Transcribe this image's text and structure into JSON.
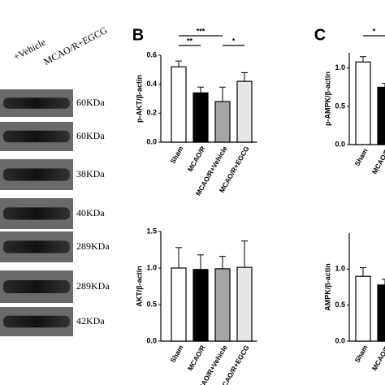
{
  "blot": {
    "lanes": [
      "+Vehicle",
      "MCAO/R+EGCG"
    ],
    "bands": [
      "60KDa",
      "60KDa",
      "38KDa",
      "40KDa",
      "289KDa",
      "289KDa",
      "42KDa"
    ]
  },
  "panels": [
    "B",
    "C"
  ],
  "chart_data": [
    {
      "type": "bar",
      "ylabel": "p-AKT/β-actin",
      "categories": [
        "Sham",
        "MCAO/R",
        "MCAO/R+Vehicle",
        "MCAO/R+EGCG"
      ],
      "values": [
        0.52,
        0.34,
        0.28,
        0.42
      ],
      "errors": [
        0.04,
        0.04,
        0.1,
        0.06
      ],
      "colors": [
        "#ffffff",
        "#000000",
        "#a6a6a6",
        "#e6e6e6"
      ],
      "ylim": [
        0,
        0.6
      ],
      "yticks": [
        {
          "value": 0,
          "label": "0.0"
        },
        {
          "value": 0.2,
          "label": "0.2"
        },
        {
          "value": 0.4,
          "label": "0.4"
        },
        {
          "value": 0.6,
          "label": "0.6"
        }
      ],
      "annotations": [
        "**",
        "***",
        "*"
      ]
    },
    {
      "type": "bar",
      "ylabel": "AKT/β-actin",
      "categories": [
        "Sham",
        "MCAO/R",
        "MCAO/R+Vehicle",
        "MCAO/R+EGCG"
      ],
      "values": [
        1.0,
        0.98,
        0.99,
        1.01
      ],
      "errors": [
        0.28,
        0.2,
        0.17,
        0.36
      ],
      "colors": [
        "#ffffff",
        "#000000",
        "#a6a6a6",
        "#e6e6e6"
      ],
      "ylim": [
        0,
        1.5
      ],
      "yticks": [
        {
          "value": 0,
          "label": "0.0"
        },
        {
          "value": 0.5,
          "label": "0.5"
        },
        {
          "value": 1,
          "label": "1.0"
        },
        {
          "value": 1.5,
          "label": "1.5"
        }
      ],
      "annotations": []
    },
    {
      "type": "bar",
      "ylabel": "p-AMPK/β-actin",
      "categories": [
        "Sham",
        "MCAO/R"
      ],
      "values": [
        1.08,
        0.75
      ],
      "errors": [
        0.07,
        0.05
      ],
      "colors": [
        "#ffffff",
        "#000000"
      ],
      "ylim": [
        0,
        1.2
      ],
      "yticks": [
        {
          "value": 0,
          "label": "0.0"
        },
        {
          "value": 0.5,
          "label": "0.5"
        },
        {
          "value": 1,
          "label": "1.0"
        }
      ],
      "annotations": [
        "*"
      ]
    },
    {
      "type": "bar",
      "ylabel": "AMPK/β-actin",
      "categories": [
        "Sham",
        "MCAO/R"
      ],
      "values": [
        0.9,
        0.78
      ],
      "errors": [
        0.12,
        0.08
      ],
      "colors": [
        "#ffffff",
        "#000000"
      ],
      "ylim": [
        0,
        1.5
      ],
      "yticks": [
        {
          "value": 0,
          "label": "0.0"
        },
        {
          "value": 0.5,
          "label": "0.5"
        },
        {
          "value": 1,
          "label": "1.0"
        }
      ],
      "annotations": []
    }
  ]
}
